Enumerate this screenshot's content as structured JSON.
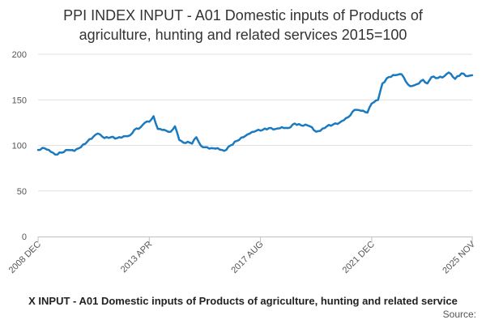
{
  "chart_data": {
    "type": "line",
    "title": "PPI INDEX INPUT - A01 Domestic inputs of Products of agriculture, hunting and related services 2015=100",
    "title_lines": [
      "PPI INDEX INPUT - A01 Domestic inputs of Products of",
      "agriculture, hunting and related services 2015=100"
    ],
    "xlabel": "",
    "ylabel": "",
    "ylim": [
      0,
      200
    ],
    "yticks": [
      0,
      50,
      100,
      150,
      200
    ],
    "xlim": [
      "2008 DEC",
      "2025 NOV"
    ],
    "xticks": [
      "2008 DEC",
      "2013 APR",
      "2017 AUG",
      "2021 DEC",
      "2025 NOV"
    ],
    "grid": true,
    "legend_placement": "bottom",
    "color": "#1a7abf",
    "series": [
      {
        "name": "X INPUT - A01 Domestic inputs of Products of agriculture, hunting and related service",
        "points": [
          [
            "2008-12",
            95
          ],
          [
            "2009-03",
            97
          ],
          [
            "2009-06",
            93
          ],
          [
            "2009-08",
            90
          ],
          [
            "2009-11",
            92
          ],
          [
            "2010-02",
            95
          ],
          [
            "2010-05",
            94
          ],
          [
            "2010-08",
            98
          ],
          [
            "2010-11",
            104
          ],
          [
            "2011-02",
            110
          ],
          [
            "2011-04",
            113
          ],
          [
            "2011-07",
            108
          ],
          [
            "2011-10",
            109
          ],
          [
            "2012-01",
            108
          ],
          [
            "2012-04",
            110
          ],
          [
            "2012-07",
            111
          ],
          [
            "2012-09",
            117
          ],
          [
            "2012-12",
            120
          ],
          [
            "2013-02",
            125
          ],
          [
            "2013-04",
            126
          ],
          [
            "2013-06",
            132
          ],
          [
            "2013-08",
            118
          ],
          [
            "2013-10",
            117
          ],
          [
            "2013-12",
            116
          ],
          [
            "2014-02",
            115
          ],
          [
            "2014-04",
            121
          ],
          [
            "2014-06",
            106
          ],
          [
            "2014-08",
            103
          ],
          [
            "2014-10",
            104
          ],
          [
            "2014-12",
            102
          ],
          [
            "2015-02",
            109
          ],
          [
            "2015-04",
            100
          ],
          [
            "2015-06",
            98
          ],
          [
            "2015-09",
            97
          ],
          [
            "2015-12",
            97
          ],
          [
            "2016-03",
            94
          ],
          [
            "2016-06",
            100
          ],
          [
            "2016-09",
            105
          ],
          [
            "2016-12",
            109
          ],
          [
            "2017-03",
            113
          ],
          [
            "2017-06",
            116
          ],
          [
            "2017-09",
            117
          ],
          [
            "2017-12",
            119
          ],
          [
            "2018-03",
            118
          ],
          [
            "2018-06",
            120
          ],
          [
            "2018-09",
            119
          ],
          [
            "2018-12",
            124
          ],
          [
            "2019-03",
            122
          ],
          [
            "2019-06",
            122
          ],
          [
            "2019-08",
            120
          ],
          [
            "2019-10",
            115
          ],
          [
            "2019-12",
            116
          ],
          [
            "2020-03",
            121
          ],
          [
            "2020-06",
            123
          ],
          [
            "2020-09",
            125
          ],
          [
            "2020-12",
            130
          ],
          [
            "2021-02",
            133
          ],
          [
            "2021-04",
            139
          ],
          [
            "2021-07",
            138
          ],
          [
            "2021-10",
            136
          ],
          [
            "2021-12",
            146
          ],
          [
            "2022-03",
            150
          ],
          [
            "2022-05",
            168
          ],
          [
            "2022-08",
            175
          ],
          [
            "2022-11",
            177
          ],
          [
            "2023-02",
            178
          ],
          [
            "2023-04",
            170
          ],
          [
            "2023-06",
            165
          ],
          [
            "2023-09",
            167
          ],
          [
            "2023-12",
            172
          ],
          [
            "2024-02",
            168
          ],
          [
            "2024-04",
            175
          ],
          [
            "2024-07",
            174
          ],
          [
            "2024-10",
            176
          ],
          [
            "2024-12",
            180
          ],
          [
            "2025-03",
            173
          ],
          [
            "2025-06",
            179
          ],
          [
            "2025-09",
            176
          ],
          [
            "2025-11",
            177
          ]
        ]
      }
    ],
    "source_label": "Source:"
  }
}
